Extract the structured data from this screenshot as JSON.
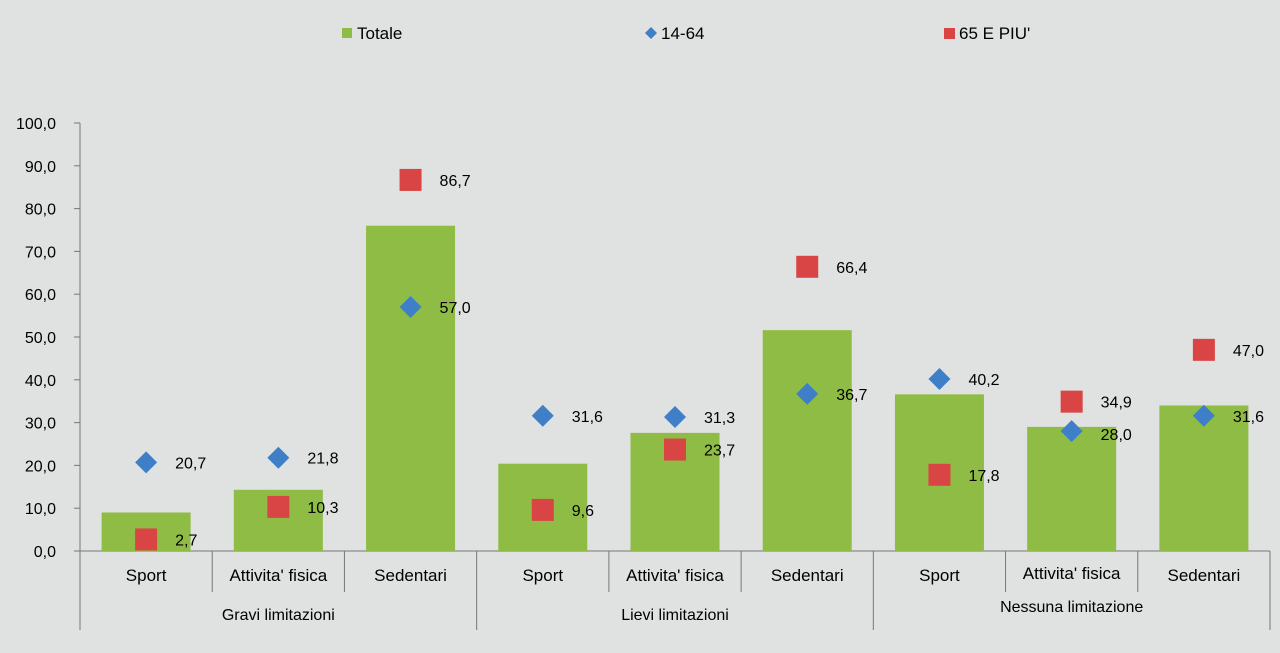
{
  "chart_data": {
    "type": "bar",
    "ylim": [
      0,
      100
    ],
    "yticks": [
      "0,0",
      "10,0",
      "20,0",
      "30,0",
      "40,0",
      "50,0",
      "60,0",
      "70,0",
      "80,0",
      "90,0",
      "100,0"
    ],
    "groups": [
      {
        "label": "Gravi limitazioni",
        "categories": [
          "Sport",
          "Attivita' fisica",
          "Sedentari"
        ]
      },
      {
        "label": "Lievi limitazioni",
        "categories": [
          "Sport",
          "Attivita' fisica",
          "Sedentari"
        ]
      },
      {
        "label": "Nessuna limitazione",
        "categories": [
          "Sport",
          "Attivita' fisica",
          "Sedentari"
        ]
      }
    ],
    "series": [
      {
        "name": "Totale",
        "kind": "bar",
        "color": "#8fbc45",
        "values": [
          9.0,
          14.3,
          76.0,
          20.4,
          27.6,
          51.6,
          36.6,
          29.0,
          34.0
        ]
      },
      {
        "name": "14-64",
        "kind": "diamond",
        "color": "#3f7fc8",
        "values": [
          20.7,
          21.8,
          57.0,
          31.6,
          31.3,
          36.7,
          40.2,
          28.0,
          31.6
        ],
        "labels": [
          "20,7",
          "21,8",
          "57,0",
          "31,6",
          "31,3",
          "36,7",
          "40,2",
          "28,0",
          "31,6"
        ]
      },
      {
        "name": "65 E PIU'",
        "kind": "square",
        "color": "#d94545",
        "values": [
          2.7,
          10.3,
          86.7,
          9.6,
          23.7,
          66.4,
          17.8,
          34.9,
          47.0
        ],
        "labels": [
          "2,7",
          "10,3",
          "86,7",
          "9,6",
          "23,7",
          "66,4",
          "17,8",
          "34,9",
          "47,0"
        ]
      }
    ],
    "legend": "top"
  }
}
